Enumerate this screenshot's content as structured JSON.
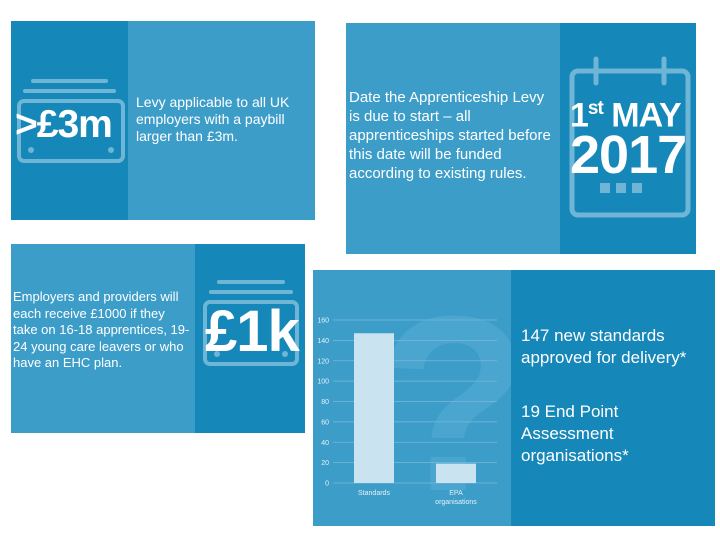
{
  "panel1": {
    "figure": ">£3m",
    "text": "Levy applicable to all UK employers with a paybill larger than £3m."
  },
  "panel2": {
    "text": "Date the Apprenticeship Levy is due to start – all apprenticeships started before this date will be funded according to existing rules.",
    "day": "1",
    "day_suffix": "st",
    "month": "MAY",
    "year": "2017"
  },
  "panel3": {
    "text": "Employers and providers will each receive £1000 if they take on 16-18 apprentices, 19-24 young care leavers or who have an EHC plan.",
    "figure": "£1k"
  },
  "panel4": {
    "stat1": "147 new standards approved for delivery*",
    "stat2": "19 End Point Assessment organisations*"
  },
  "chart_data": {
    "type": "bar",
    "categories": [
      "Standards",
      "EPA organisations"
    ],
    "values": [
      147,
      19
    ],
    "title": "",
    "xlabel": "",
    "ylabel": "",
    "ylim": [
      0,
      160
    ],
    "yticks": [
      0,
      20,
      40,
      60,
      80,
      100,
      120,
      140,
      160
    ],
    "grid": true,
    "bar_color": "#c9e3f0"
  }
}
